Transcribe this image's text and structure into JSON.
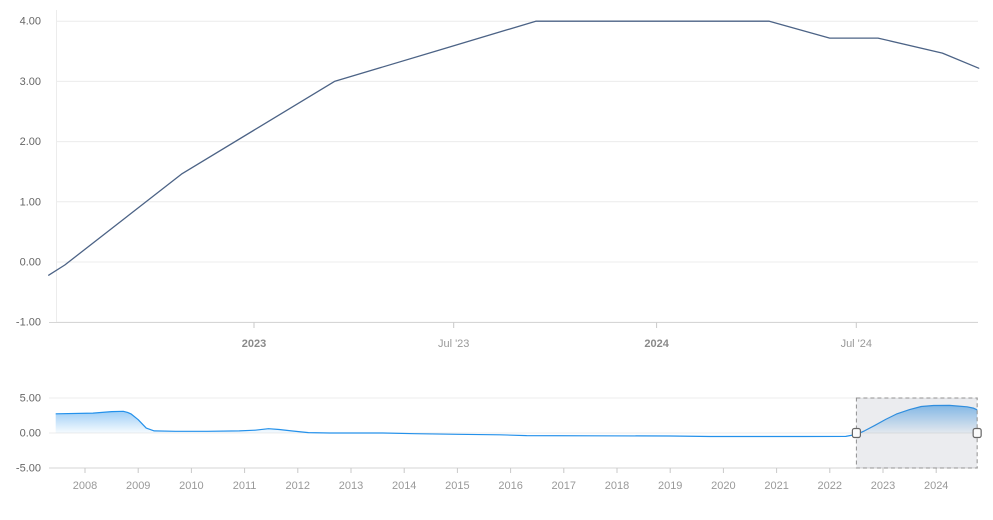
{
  "page": {
    "background": "#ffffff"
  },
  "chart": {
    "kind": "stock line chart with range navigator",
    "colors": {
      "main_line": "#4c6386",
      "grid_line": "#ececec",
      "axis_line": "#d6d6d6",
      "tick_mark": "#c8c8c8",
      "y_label": "#666666",
      "x_label_major": "#8a8a8a",
      "x_label_minor": "#999999",
      "nav_label": "#999999",
      "nav_line": "#2491eb",
      "nav_fill_top": "rgba(36,145,235,0.55)",
      "nav_fill_bottom": "rgba(36,145,235,0.04)",
      "mask_fill": "rgba(120,130,150,0.15)",
      "mask_border": "#909090",
      "handle_fill": "#fbfbfb",
      "handle_border": "#666666"
    }
  },
  "chart_data": [
    {
      "type": "line",
      "name": "policy-rate-main",
      "title": "",
      "xlabel": "",
      "ylabel": "",
      "grid": true,
      "ylim": [
        -1.35,
        4.25
      ],
      "x": [
        2022.49,
        2022.53,
        2022.82,
        2023.2,
        2023.46,
        2023.7,
        2024.28,
        2024.43,
        2024.55,
        2024.71,
        2024.8
      ],
      "values": [
        -0.22,
        -0.05,
        1.46,
        3.0,
        3.52,
        4.0,
        4.0,
        3.72,
        3.72,
        3.47,
        3.22
      ],
      "yticks": [
        {
          "label": "4.00",
          "value": 4
        },
        {
          "label": "3.00",
          "value": 3
        },
        {
          "label": "2.00",
          "value": 2
        },
        {
          "label": "1.00",
          "value": 1
        },
        {
          "label": "0.00",
          "value": 0
        },
        {
          "label": "-1.00",
          "value": -1
        }
      ],
      "xticks": [
        {
          "label": "2023",
          "year": 2023.0,
          "major": true
        },
        {
          "label": "Jul '23",
          "year": 2023.496,
          "major": false
        },
        {
          "label": "2024",
          "year": 2024.0,
          "major": true
        },
        {
          "label": "Jul '24",
          "year": 2024.496,
          "major": false
        }
      ]
    },
    {
      "type": "area",
      "name": "policy-rate-navigator",
      "title": "",
      "grid": true,
      "ylim": [
        -5,
        5
      ],
      "x": [
        2007.45,
        2008.15,
        2008.5,
        2008.72,
        2008.8,
        2008.87,
        2009.0,
        2009.15,
        2009.3,
        2009.7,
        2010.3,
        2010.9,
        2011.2,
        2011.45,
        2011.65,
        2011.9,
        2012.2,
        2012.6,
        2013.6,
        2014.2,
        2015.0,
        2015.8,
        2016.3,
        2017.5,
        2019.0,
        2019.75,
        2021.5,
        2022.3,
        2022.5,
        2022.65,
        2022.85,
        2023.05,
        2023.25,
        2023.5,
        2023.72,
        2023.95,
        2024.25,
        2024.42,
        2024.58,
        2024.7,
        2024.77
      ],
      "values": [
        2.75,
        2.85,
        3.05,
        3.1,
        2.95,
        2.7,
        1.9,
        0.7,
        0.3,
        0.25,
        0.25,
        0.3,
        0.4,
        0.62,
        0.5,
        0.28,
        0.05,
        0.0,
        0.0,
        -0.1,
        -0.18,
        -0.25,
        -0.37,
        -0.4,
        -0.43,
        -0.5,
        -0.5,
        -0.48,
        -0.2,
        0.3,
        1.1,
        1.95,
        2.7,
        3.35,
        3.78,
        3.93,
        3.95,
        3.85,
        3.75,
        3.55,
        3.3
      ],
      "yticks": [
        {
          "label": "5.00",
          "value": 5
        },
        {
          "label": "0.00",
          "value": 0
        },
        {
          "label": "-5.00",
          "value": -5
        }
      ],
      "xticks": [
        {
          "label": "2008",
          "year": 2008
        },
        {
          "label": "2009",
          "year": 2009
        },
        {
          "label": "2010",
          "year": 2010
        },
        {
          "label": "2011",
          "year": 2011
        },
        {
          "label": "2012",
          "year": 2012
        },
        {
          "label": "2013",
          "year": 2013
        },
        {
          "label": "2014",
          "year": 2014
        },
        {
          "label": "2015",
          "year": 2015
        },
        {
          "label": "2016",
          "year": 2016
        },
        {
          "label": "2017",
          "year": 2017
        },
        {
          "label": "2018",
          "year": 2018
        },
        {
          "label": "2019",
          "year": 2019
        },
        {
          "label": "2020",
          "year": 2020
        },
        {
          "label": "2021",
          "year": 2021
        },
        {
          "label": "2022",
          "year": 2022
        },
        {
          "label": "2023",
          "year": 2023
        },
        {
          "label": "2024",
          "year": 2024
        }
      ],
      "selection": {
        "start_year": 2022.5,
        "end_year": 2024.77
      },
      "legend": "none"
    }
  ]
}
